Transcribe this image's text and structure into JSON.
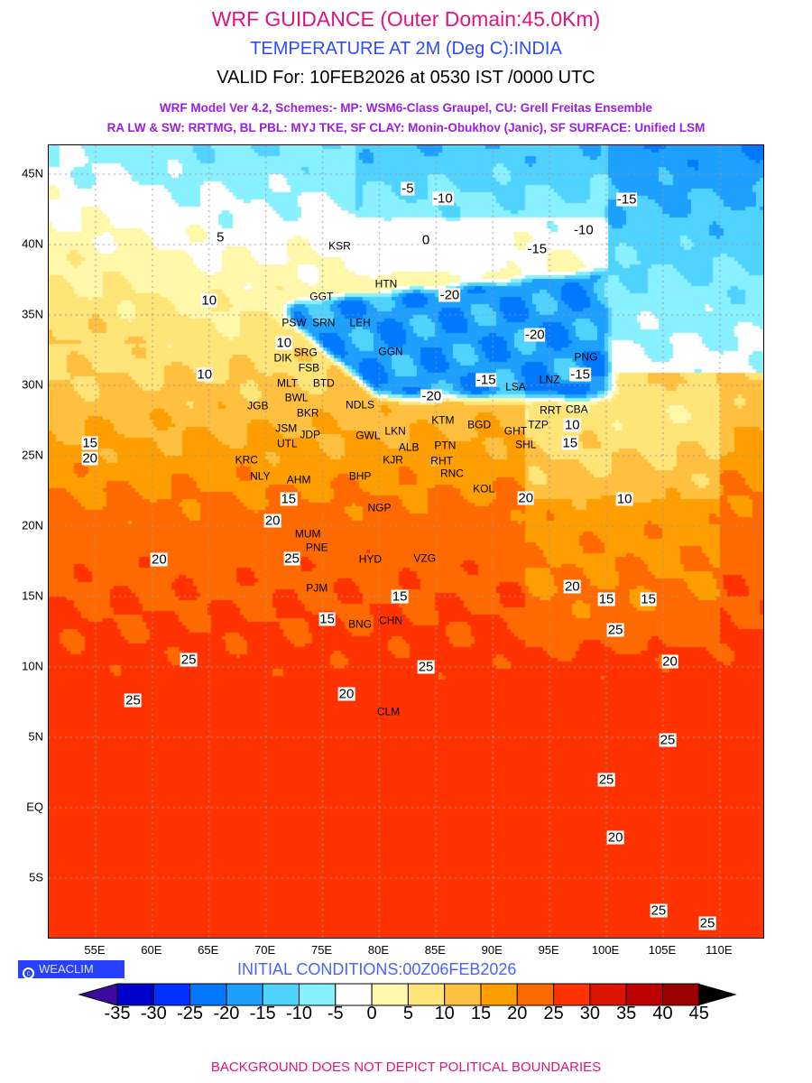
{
  "header": {
    "title": "WRF GUIDANCE (Outer Domain:45.0Km)",
    "subtitle": "TEMPERATURE AT 2M (Deg C):INDIA",
    "valid": "VALID For: 10FEB2026 at 0530 IST /0000 UTC",
    "model_line1": "WRF Model Ver 4.2, Schemes:- MP: WSM6-Class Graupel, CU: Grell Freitas Ensemble",
    "model_line2": "RA LW & SW: RRTMG, BL PBL: MYJ TKE, SF CLAY: Monin-Obukhov (Janic), SF SURFACE: Unified LSM"
  },
  "map": {
    "lat_labels": [
      {
        "lat": 45,
        "text": "45N"
      },
      {
        "lat": 40,
        "text": "40N"
      },
      {
        "lat": 35,
        "text": "35N"
      },
      {
        "lat": 30,
        "text": "30N"
      },
      {
        "lat": 25,
        "text": "25N"
      },
      {
        "lat": 20,
        "text": "20N"
      },
      {
        "lat": 15,
        "text": "15N"
      },
      {
        "lat": 10,
        "text": "10N"
      },
      {
        "lat": 5,
        "text": "5N"
      },
      {
        "lat": 0,
        "text": "EQ"
      },
      {
        "lat": -5,
        "text": "5S"
      }
    ],
    "lon_labels": [
      {
        "lon": 55,
        "text": "55E"
      },
      {
        "lon": 60,
        "text": "60E"
      },
      {
        "lon": 65,
        "text": "65E"
      },
      {
        "lon": 70,
        "text": "70E"
      },
      {
        "lon": 75,
        "text": "75E"
      },
      {
        "lon": 80,
        "text": "80E"
      },
      {
        "lon": 85,
        "text": "85E"
      },
      {
        "lon": 90,
        "text": "90E"
      },
      {
        "lon": 95,
        "text": "95E"
      },
      {
        "lon": 100,
        "text": "100E"
      },
      {
        "lon": 105,
        "text": "105E"
      },
      {
        "lon": 110,
        "text": "110E"
      }
    ],
    "stations": [
      {
        "code": "KSR",
        "lat": 39.9,
        "lon": 76.5
      },
      {
        "code": "HTN",
        "lat": 37.2,
        "lon": 80.6
      },
      {
        "code": "GGT",
        "lat": 36.3,
        "lon": 74.9
      },
      {
        "code": "PSW",
        "lat": 34.4,
        "lon": 72.5
      },
      {
        "code": "SRN",
        "lat": 34.4,
        "lon": 75.1
      },
      {
        "code": "LEH",
        "lat": 34.4,
        "lon": 78.3
      },
      {
        "code": "GGN",
        "lat": 32.4,
        "lon": 81.0
      },
      {
        "code": "DIK",
        "lat": 32.2,
        "lon": 71.5
      },
      {
        "code": "SRG",
        "lat": 32.3,
        "lon": 73.5
      },
      {
        "code": "FSB",
        "lat": 31.7,
        "lon": 73.8
      },
      {
        "code": "MLT",
        "lat": 30.4,
        "lon": 71.9
      },
      {
        "code": "BTD",
        "lat": 30.4,
        "lon": 75.1
      },
      {
        "code": "BWL",
        "lat": 29.6,
        "lon": 72.7
      },
      {
        "code": "NDLS",
        "lat": 28.6,
        "lon": 78.3
      },
      {
        "code": "BKR",
        "lat": 28.3,
        "lon": 73.7
      },
      {
        "code": "JGB",
        "lat": 28.5,
        "lon": 69.3
      },
      {
        "code": "JSM",
        "lat": 27.2,
        "lon": 71.8
      },
      {
        "code": "JDP",
        "lat": 26.5,
        "lon": 73.9
      },
      {
        "code": "UTL",
        "lat": 26.1,
        "lon": 72.2
      },
      {
        "code": "GWL",
        "lat": 26.4,
        "lon": 79.0
      },
      {
        "code": "LKN",
        "lat": 26.7,
        "lon": 81.4
      },
      {
        "code": "ALB",
        "lat": 25.6,
        "lon": 82.6
      },
      {
        "code": "KJR",
        "lat": 25.2,
        "lon": 81.2
      },
      {
        "code": "PTN",
        "lat": 25.7,
        "lon": 85.8
      },
      {
        "code": "RHT",
        "lat": 24.9,
        "lon": 85.5
      },
      {
        "code": "RNC",
        "lat": 23.7,
        "lon": 86.4
      },
      {
        "code": "KTM",
        "lat": 27.5,
        "lon": 85.6
      },
      {
        "code": "BGD",
        "lat": 27.2,
        "lon": 88.8
      },
      {
        "code": "GHT",
        "lat": 26.7,
        "lon": 92.0
      },
      {
        "code": "SHL",
        "lat": 26.0,
        "lon": 92.9
      },
      {
        "code": "TZP",
        "lat": 27.2,
        "lon": 94.0
      },
      {
        "code": "RRT",
        "lat": 27.2,
        "lon": 95.1
      },
      {
        "code": "LSA",
        "lat": 29.9,
        "lon": 92.0
      },
      {
        "code": "LNZ",
        "lat": 30.4,
        "lon": 95.0
      },
      {
        "code": "PNG",
        "lat": 31.5,
        "lon": 98.2
      },
      {
        "code": "CBA",
        "lat": 28.0,
        "lon": 97.4
      },
      {
        "code": "KRC",
        "lat": 24.7,
        "lon": 68.3
      },
      {
        "code": "NLY",
        "lat": 23.5,
        "lon": 69.5
      },
      {
        "code": "AHM",
        "lat": 23.3,
        "lon": 72.9
      },
      {
        "code": "BHP",
        "lat": 23.5,
        "lon": 78.3
      },
      {
        "code": "KOL",
        "lat": 22.6,
        "lon": 89.2
      },
      {
        "code": "NGP",
        "lat": 21.3,
        "lon": 80.0
      },
      {
        "code": "MUM",
        "lat": 19.4,
        "lon": 73.7
      },
      {
        "code": "PNE",
        "lat": 18.7,
        "lon": 74.5
      },
      {
        "code": "HYD",
        "lat": 17.6,
        "lon": 79.2
      },
      {
        "code": "VZG",
        "lat": 17.7,
        "lon": 84.0
      },
      {
        "code": "PJM",
        "lat": 15.6,
        "lon": 74.5
      },
      {
        "code": "BNG",
        "lat": 13.0,
        "lon": 78.3
      },
      {
        "code": "CHN",
        "lat": 13.3,
        "lon": 81.0
      },
      {
        "code": "CLM",
        "lat": 6.8,
        "lon": 80.8
      }
    ],
    "contour_labels": [
      {
        "text": "-15",
        "lat": 43.2,
        "lon": 101.8
      },
      {
        "text": "-10",
        "lat": 41.0,
        "lon": 98.0
      },
      {
        "text": "-5",
        "lat": 44.0,
        "lon": 82.5
      },
      {
        "text": "-10",
        "lat": 43.3,
        "lon": 85.6
      },
      {
        "text": "-15",
        "lat": 39.7,
        "lon": 93.9
      },
      {
        "text": "-20",
        "lat": 36.4,
        "lon": 86.2
      },
      {
        "text": "-20",
        "lat": 33.6,
        "lon": 93.7
      },
      {
        "text": "-15",
        "lat": 30.4,
        "lon": 89.4
      },
      {
        "text": "-20",
        "lat": 29.2,
        "lon": 84.6
      },
      {
        "text": "-15",
        "lat": 30.8,
        "lon": 97.7
      },
      {
        "text": "0",
        "lat": 40.3,
        "lon": 84.1
      },
      {
        "text": "5",
        "lat": 40.5,
        "lon": 66.0
      },
      {
        "text": "10",
        "lat": 36.0,
        "lon": 65.0
      },
      {
        "text": "10",
        "lat": 30.8,
        "lon": 64.6
      },
      {
        "text": "10",
        "lat": 33.0,
        "lon": 71.6
      },
      {
        "text": "15",
        "lat": 25.9,
        "lon": 54.5
      },
      {
        "text": "20",
        "lat": 25.6,
        "lon": 54.5
      },
      {
        "text": "15",
        "lat": 21.9,
        "lon": 72.0
      },
      {
        "text": "20",
        "lat": 20.4,
        "lon": 70.6
      },
      {
        "text": "25",
        "lat": 17.7,
        "lon": 72.3
      },
      {
        "text": "20",
        "lat": 17.6,
        "lon": 60.6
      },
      {
        "text": "15",
        "lat": 15.0,
        "lon": 81.8
      },
      {
        "text": "15",
        "lat": 13.4,
        "lon": 75.4
      },
      {
        "text": "25",
        "lat": 10.5,
        "lon": 63.2
      },
      {
        "text": "25",
        "lat": 10.0,
        "lon": 84.1
      },
      {
        "text": "20",
        "lat": 8.1,
        "lon": 77.1
      },
      {
        "text": "25",
        "lat": 7.6,
        "lon": 58.3
      },
      {
        "text": "20",
        "lat": 22.0,
        "lon": 92.9
      },
      {
        "text": "15",
        "lat": 25.9,
        "lon": 96.8
      },
      {
        "text": "10",
        "lat": 27.2,
        "lon": 97.0
      },
      {
        "text": "10",
        "lat": 21.9,
        "lon": 101.6
      },
      {
        "text": "20",
        "lat": 15.7,
        "lon": 97.0
      },
      {
        "text": "15",
        "lat": 14.8,
        "lon": 100.0
      },
      {
        "text": "15",
        "lat": 14.8,
        "lon": 103.7
      },
      {
        "text": "25",
        "lat": 12.6,
        "lon": 100.8
      },
      {
        "text": "20",
        "lat": 10.4,
        "lon": 105.6
      },
      {
        "text": "25",
        "lat": 4.8,
        "lon": 105.4
      },
      {
        "text": "25",
        "lat": 2.0,
        "lon": 100.0
      },
      {
        "text": "20",
        "lat": -2.1,
        "lon": 100.8
      },
      {
        "text": "25",
        "lat": -7.3,
        "lon": 104.6
      },
      {
        "text": "25",
        "lat": -8.2,
        "lon": 108.9
      }
    ]
  },
  "footer": {
    "logo": "WEACLIM",
    "initial": "INITIAL CONDITIONS:00Z06FEB2026",
    "note": "BACKGROUND DOES NOT DEPICT POLITICAL BOUNDARIES"
  },
  "colorbar": {
    "colors": [
      "#3c0aa0",
      "#0000cc",
      "#0032ff",
      "#0078ff",
      "#1ea0ff",
      "#50d2ff",
      "#88f0ff",
      "#ffffff",
      "#fff8aa",
      "#ffe478",
      "#ffc040",
      "#ff9e00",
      "#ff6a00",
      "#ff3300",
      "#dc1400",
      "#bc0000",
      "#9a0000",
      "#000000"
    ],
    "labels": [
      "-35",
      "-30",
      "-25",
      "-20",
      "-15",
      "-10",
      "-5",
      "0",
      "5",
      "10",
      "15",
      "20",
      "25",
      "30",
      "35",
      "40",
      "45"
    ]
  }
}
